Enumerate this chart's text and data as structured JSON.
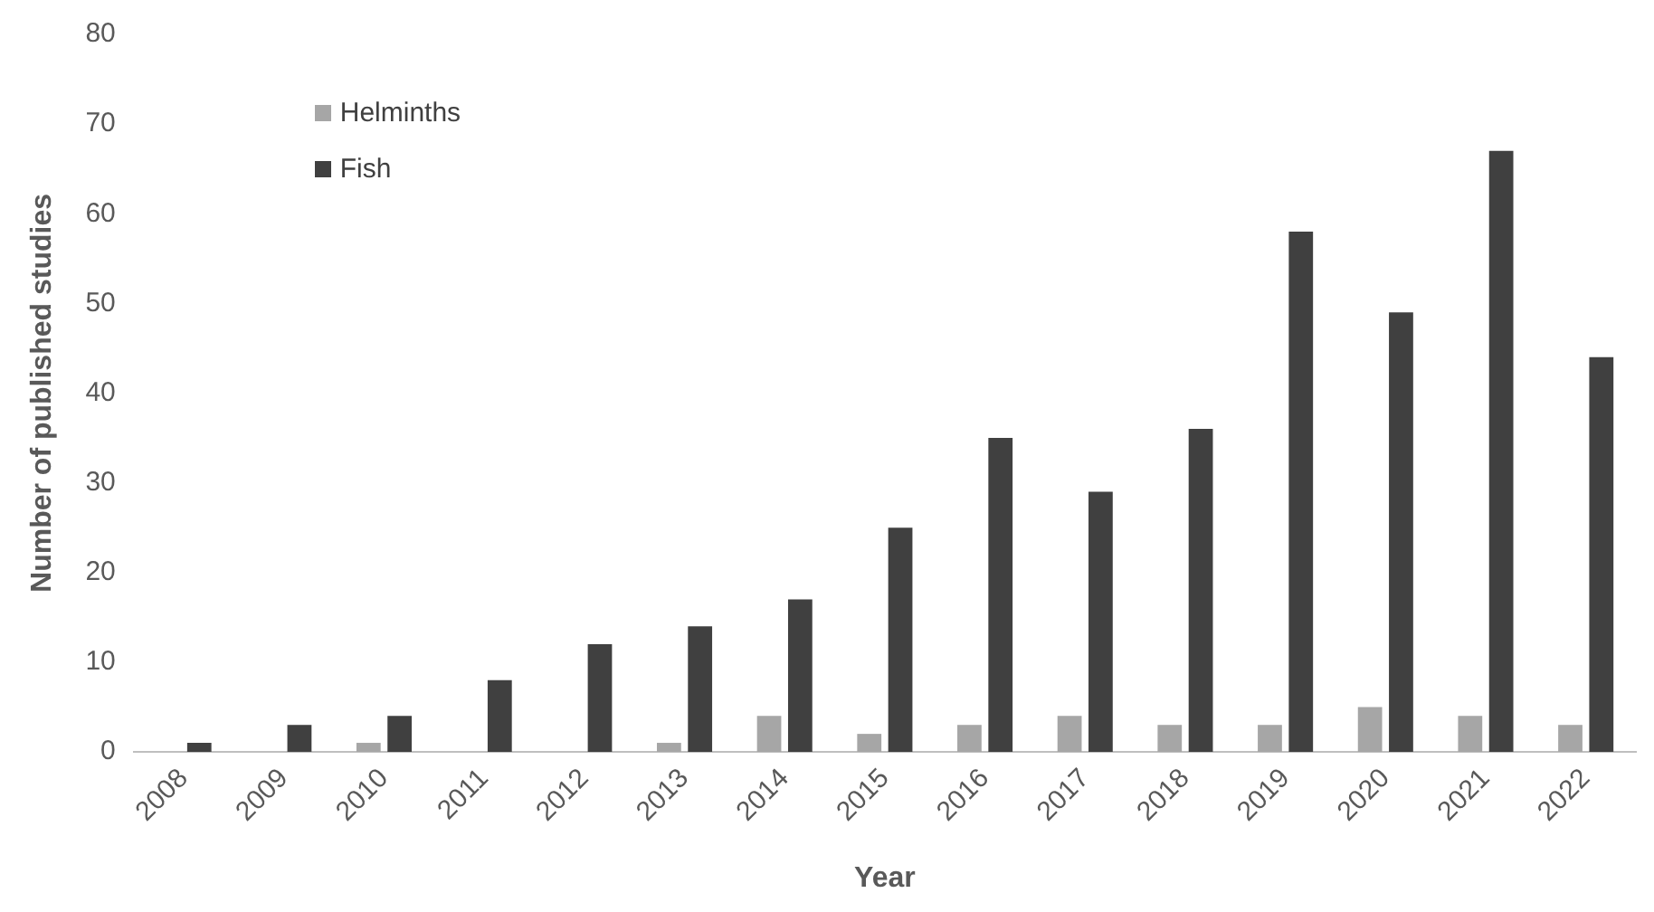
{
  "chart_data": {
    "type": "bar",
    "xlabel": "Year",
    "ylabel": "Number of published studies",
    "categories": [
      "2008",
      "2009",
      "2010",
      "2011",
      "2012",
      "2013",
      "2014",
      "2015",
      "2016",
      "2017",
      "2018",
      "2019",
      "2020",
      "2021",
      "2022"
    ],
    "series": [
      {
        "name": "Helminths",
        "color": "#a6a6a6",
        "values": [
          0,
          0,
          1,
          0,
          0,
          1,
          4,
          2,
          3,
          4,
          3,
          3,
          5,
          4,
          3
        ]
      },
      {
        "name": "Fish",
        "color": "#404040",
        "values": [
          1,
          3,
          4,
          8,
          12,
          14,
          17,
          25,
          35,
          29,
          36,
          58,
          49,
          67,
          44
        ]
      }
    ],
    "ylim": [
      0,
      80
    ],
    "yticks": [
      0,
      10,
      20,
      30,
      40,
      50,
      60,
      70,
      80
    ],
    "grid": false,
    "legend": "top left"
  }
}
